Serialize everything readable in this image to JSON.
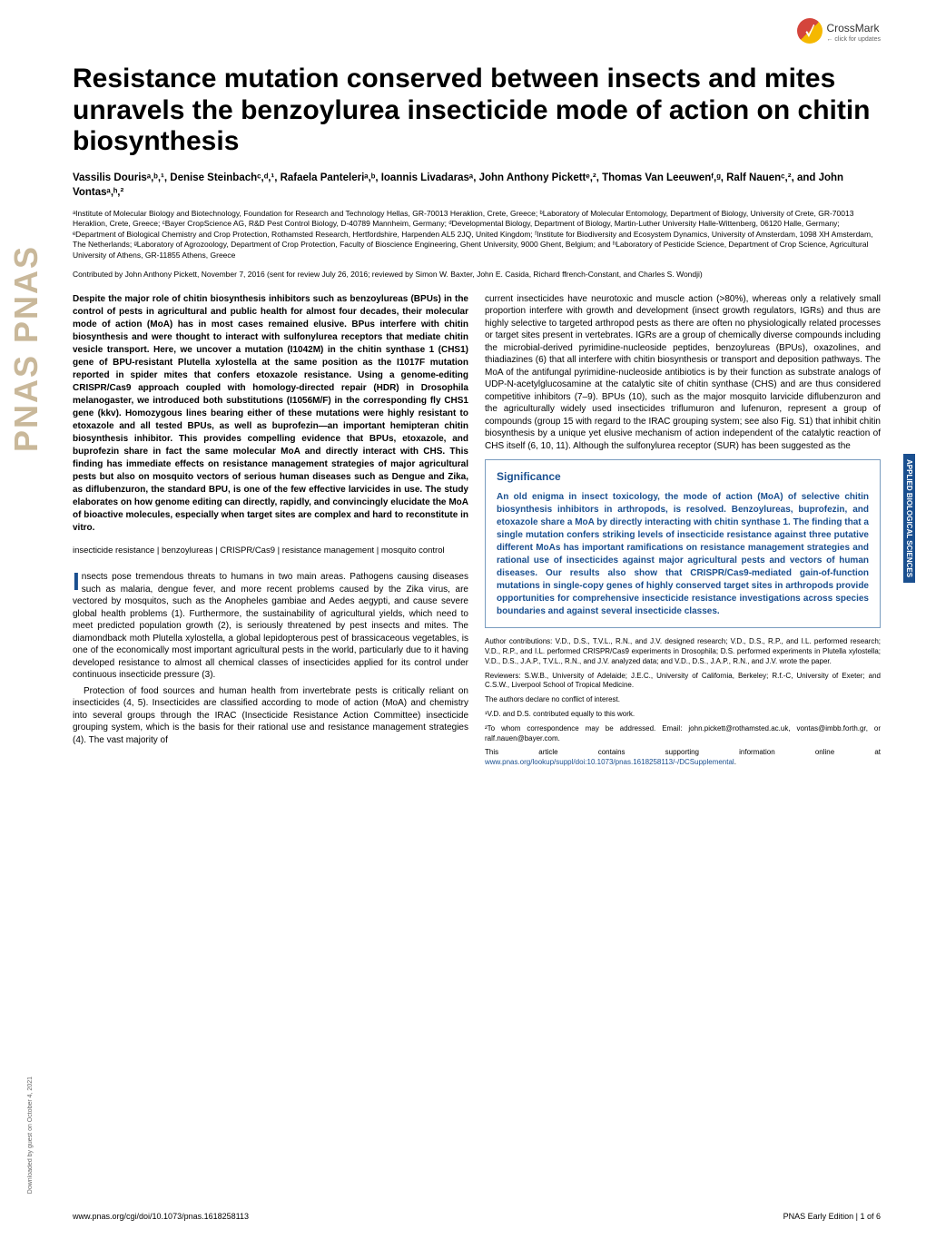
{
  "crossmark": {
    "label": "CrossMark",
    "sub": "← click for updates"
  },
  "title": "Resistance mutation conserved between insects and mites unravels the benzoylurea insecticide mode of action on chitin biosynthesis",
  "authors": "Vassilis Dourisᵃ,ᵇ,¹, Denise Steinbachᶜ,ᵈ,¹, Rafaela Panteleriᵃ,ᵇ, Ioannis Livadarasᵃ, John Anthony Pickettᵉ,², Thomas Van Leeuwenᶠ,ᵍ, Ralf Nauenᶜ,², and John Vontasᵃ,ʰ,²",
  "affiliations": "ᵃInstitute of Molecular Biology and Biotechnology, Foundation for Research and Technology Hellas, GR-70013 Heraklion, Crete, Greece; ᵇLaboratory of Molecular Entomology, Department of Biology, University of Crete, GR-70013 Heraklion, Crete, Greece; ᶜBayer CropScience AG, R&D Pest Control Biology, D-40789 Mannheim, Germany; ᵈDevelopmental Biology, Department of Biology, Martin-Luther University Halle-Wittenberg, 06120 Halle, Germany; ᵉDepartment of Biological Chemistry and Crop Protection, Rothamsted Research, Hertfordshire, Harpenden AL5 2JQ, United Kingdom; ᶠInstitute for Biodiversity and Ecosystem Dynamics, University of Amsterdam, 1098 XH Amsterdam, The Netherlands; ᵍLaboratory of Agrozoology, Department of Crop Protection, Faculty of Bioscience Engineering, Ghent University, 9000 Ghent, Belgium; and ʰLaboratory of Pesticide Science, Department of Crop Science, Agricultural University of Athens, GR-11855 Athens, Greece",
  "contributed": "Contributed by John Anthony Pickett, November 7, 2016 (sent for review July 26, 2016; reviewed by Simon W. Baxter, John E. Casida, Richard ffrench-Constant, and Charles S. Wondji)",
  "abstract": "Despite the major role of chitin biosynthesis inhibitors such as benzoylureas (BPUs) in the control of pests in agricultural and public health for almost four decades, their molecular mode of action (MoA) has in most cases remained elusive. BPus interfere with chitin biosynthesis and were thought to interact with sulfonylurea receptors that mediate chitin vesicle transport. Here, we uncover a mutation (I1042M) in the chitin synthase 1 (CHS1) gene of BPU-resistant Plutella xylostella at the same position as the I1017F mutation reported in spider mites that confers etoxazole resistance. Using a genome-editing CRISPR/Cas9 approach coupled with homology-directed repair (HDR) in Drosophila melanogaster, we introduced both substitutions (I1056M/F) in the corresponding fly CHS1 gene (kkv). Homozygous lines bearing either of these mutations were highly resistant to etoxazole and all tested BPUs, as well as buprofezin—an important hemipteran chitin biosynthesis inhibitor. This provides compelling evidence that BPUs, etoxazole, and buprofezin share in fact the same molecular MoA and directly interact with CHS. This finding has immediate effects on resistance management strategies of major agricultural pests but also on mosquito vectors of serious human diseases such as Dengue and Zika, as diflubenzuron, the standard BPU, is one of the few effective larvicides in use. The study elaborates on how genome editing can directly, rapidly, and convincingly elucidate the MoA of bioactive molecules, especially when target sites are complex and hard to reconstitute in vitro.",
  "keywords": "insecticide resistance | benzoylureas | CRISPR/Cas9 | resistance management | mosquito control",
  "body": {
    "p1": "nsects pose tremendous threats to humans in two main areas. Pathogens causing diseases such as malaria, dengue fever, and more recent problems caused by the Zika virus, are vectored by mosquitos, such as the Anopheles gambiae and Aedes aegypti, and cause severe global health problems (1). Furthermore, the sustainability of agricultural yields, which need to meet predicted population growth (2), is seriously threatened by pest insects and mites. The diamondback moth Plutella xylostella, a global lepidopterous pest of brassicaceous vegetables, is one of the economically most important agricultural pests in the world, particularly due to it having developed resistance to almost all chemical classes of insecticides applied for its control under continuous insecticide pressure (3).",
    "p2": "Protection of food sources and human health from invertebrate pests is critically reliant on insecticides (4, 5). Insecticides are classified according to mode of action (MoA) and chemistry into several groups through the IRAC (Insecticide Resistance Action Committee) insecticide grouping system, which is the basis for their rational use and resistance management strategies (4). The vast majority of",
    "p3": "current insecticides have neurotoxic and muscle action (>80%), whereas only a relatively small proportion interfere with growth and development (insect growth regulators, IGRs) and thus are highly selective to targeted arthropod pests as there are often no physiologically related processes or target sites present in vertebrates. IGRs are a group of chemically diverse compounds including the microbial-derived pyrimidine-nucleoside peptides, benzoylureas (BPUs), oxazolines, and thiadiazines (6) that all interfere with chitin biosynthesis or transport and deposition pathways. The MoA of the antifungal pyrimidine-nucleoside antibiotics is by their function as substrate analogs of UDP-N-acetylglucosamine at the catalytic site of chitin synthase (CHS) and are thus considered competitive inhibitors (7–9). BPUs (10), such as the major mosquito larvicide diflubenzuron and the agriculturally widely used insecticides triflumuron and lufenuron, represent a group of compounds (group 15 with regard to the IRAC grouping system; see also Fig. S1) that inhibit chitin biosynthesis by a unique yet elusive mechanism of action independent of the catalytic reaction of CHS itself (6, 10, 11). Although the sulfonylurea receptor (SUR) has been suggested as the"
  },
  "significance": {
    "title": "Significance",
    "text": "An old enigma in insect toxicology, the mode of action (MoA) of selective chitin biosynthesis inhibitors in arthropods, is resolved. Benzoylureas, buprofezin, and etoxazole share a MoA by directly interacting with chitin synthase 1. The finding that a single mutation confers striking levels of insecticide resistance against three putative different MoAs has important ramifications on resistance management strategies and rational use of insecticides against major agricultural pests and vectors of human diseases. Our results also show that CRISPR/Cas9-mediated gain-of-function mutations in single-copy genes of highly conserved target sites in arthropods provide opportunities for comprehensive insecticide resistance investigations across species boundaries and against several insecticide classes."
  },
  "footnotes": {
    "f1": "Author contributions: V.D., D.S., T.V.L., R.N., and J.V. designed research; V.D., D.S., R.P., and I.L. performed research; V.D., R.P., and I.L. performed CRISPR/Cas9 experiments in Drosophila; D.S. performed experiments in Plutella xylostella; V.D., D.S., J.A.P., T.V.L., R.N., and J.V. analyzed data; and V.D., D.S., J.A.P., R.N., and J.V. wrote the paper.",
    "f2": "Reviewers: S.W.B., University of Adelaide; J.E.C., University of California, Berkeley; R.f.-C, University of Exeter; and C.S.W., Liverpool School of Tropical Medicine.",
    "f3": "The authors declare no conflict of interest.",
    "f4": "¹V.D. and D.S. contributed equally to this work.",
    "f5": "²To whom correspondence may be addressed. Email: john.pickett@rothamsted.ac.uk, vontas@imbb.forth.gr, or ralf.nauen@bayer.com.",
    "f6a": "This article contains supporting information online at ",
    "f6b": "www.pnas.org/lookup/suppl/doi:10.1073/pnas.1618258113/-/DCSupplemental",
    "f6c": "."
  },
  "sidebar": {
    "pnas": "PNAS  PNAS",
    "tab": "APPLIED BIOLOGICAL SCIENCES",
    "download": "Downloaded by guest on October 4, 2021"
  },
  "footer": {
    "left": "www.pnas.org/cgi/doi/10.1073/pnas.1618258113",
    "right": "PNAS Early Edition | 1 of 6"
  },
  "colors": {
    "accent": "#1a4f8f",
    "pnas_tan": "#c9b89a",
    "sig_border": "#7a9cbf"
  }
}
